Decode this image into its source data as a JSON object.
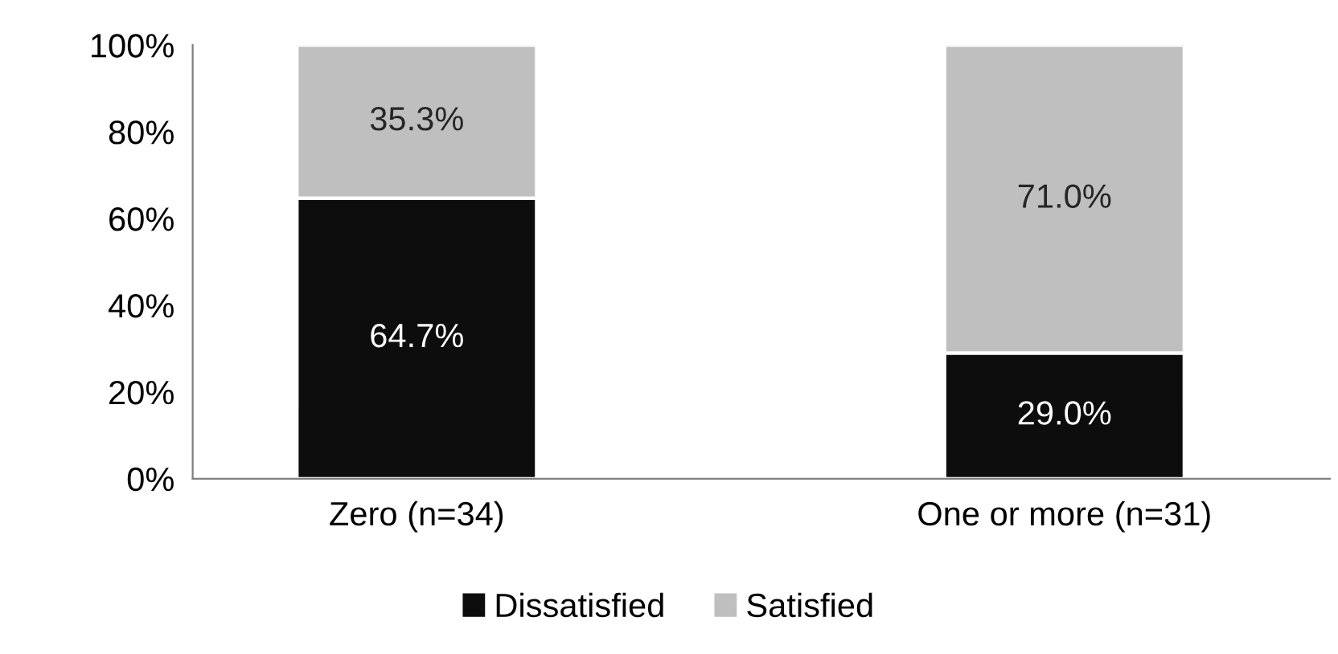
{
  "chart_data": {
    "type": "bar",
    "stacked": true,
    "categories": [
      "Zero (n=34)",
      "One or more (n=31)"
    ],
    "series": [
      {
        "name": "Dissatisfied",
        "color": "#0d0d0d",
        "values": [
          64.7,
          29.0
        ],
        "value_labels": [
          "64.7%",
          "29.0%"
        ]
      },
      {
        "name": "Satisfied",
        "color": "#bfbfbf",
        "values": [
          35.3,
          71.0
        ],
        "value_labels": [
          "35.3%",
          "71.0%"
        ]
      }
    ],
    "ylim": [
      0,
      100
    ],
    "yticks": [
      {
        "value": 0,
        "label": "0%"
      },
      {
        "value": 20,
        "label": "20%"
      },
      {
        "value": 40,
        "label": "40%"
      },
      {
        "value": 60,
        "label": "60%"
      },
      {
        "value": 80,
        "label": "80%"
      },
      {
        "value": 100,
        "label": "100%"
      }
    ],
    "grid": false,
    "legend": "bottom"
  }
}
